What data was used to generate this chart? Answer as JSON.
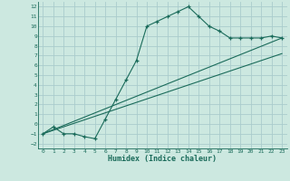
{
  "title": "",
  "xlabel": "Humidex (Indice chaleur)",
  "bg_color": "#cce8e0",
  "grid_color": "#aacccc",
  "line_color": "#1a6b5a",
  "xlim": [
    -0.5,
    23.5
  ],
  "ylim": [
    -2.5,
    12.5
  ],
  "xticks": [
    0,
    1,
    2,
    3,
    4,
    5,
    6,
    7,
    8,
    9,
    10,
    11,
    12,
    13,
    14,
    15,
    16,
    17,
    18,
    19,
    20,
    21,
    22,
    23
  ],
  "yticks": [
    -2,
    -1,
    0,
    1,
    2,
    3,
    4,
    5,
    6,
    7,
    8,
    9,
    10,
    11,
    12
  ],
  "main_x": [
    0,
    1,
    2,
    3,
    4,
    5,
    6,
    7,
    8,
    9,
    10,
    11,
    12,
    13,
    14,
    15,
    16,
    17,
    18,
    19,
    20,
    21,
    22,
    23
  ],
  "main_y": [
    -1.0,
    -0.3,
    -1.0,
    -1.0,
    -1.3,
    -1.5,
    0.5,
    2.5,
    4.5,
    6.5,
    10.0,
    10.5,
    11.0,
    11.5,
    12.0,
    11.0,
    10.0,
    9.5,
    8.8,
    8.8,
    8.8,
    8.8,
    9.0,
    8.8
  ],
  "line1_x": [
    0,
    23
  ],
  "line1_y": [
    -1.0,
    8.8
  ],
  "line2_x": [
    0,
    23
  ],
  "line2_y": [
    -1.0,
    7.2
  ]
}
